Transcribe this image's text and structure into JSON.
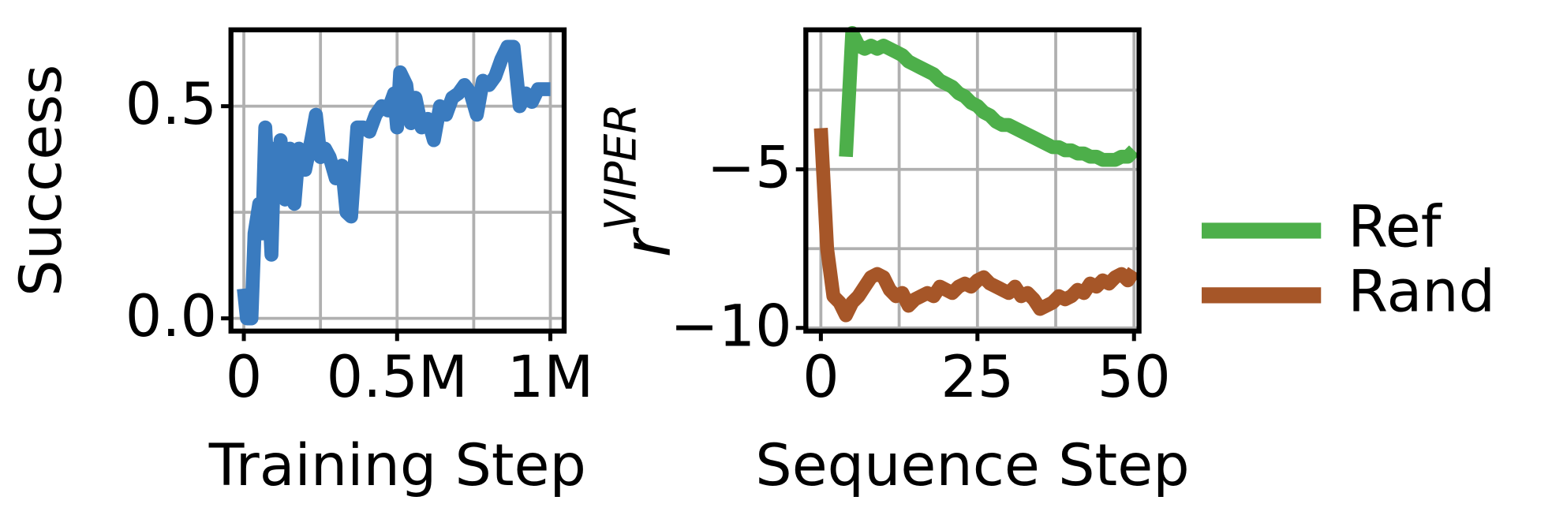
{
  "chart_data": [
    {
      "type": "line",
      "xlabel": "Training Step",
      "ylabel": "Success",
      "color": "#3a7bbf",
      "x": [
        0,
        10000,
        25000,
        35000,
        50000,
        60000,
        70000,
        80000,
        90000,
        100000,
        110000,
        120000,
        135000,
        150000,
        165000,
        180000,
        200000,
        220000,
        235000,
        250000,
        265000,
        280000,
        300000,
        320000,
        335000,
        350000,
        370000,
        390000,
        410000,
        430000,
        450000,
        470000,
        490000,
        500000,
        510000,
        530000,
        545000,
        560000,
        580000,
        600000,
        620000,
        640000,
        660000,
        680000,
        700000,
        720000,
        740000,
        760000,
        780000,
        800000,
        820000,
        840000,
        860000,
        880000,
        900000,
        920000,
        940000,
        960000,
        980000,
        1000000
      ],
      "values": [
        0.07,
        0.0,
        0.0,
        0.2,
        0.27,
        0.2,
        0.45,
        0.3,
        0.15,
        0.4,
        0.3,
        0.42,
        0.28,
        0.4,
        0.27,
        0.4,
        0.35,
        0.42,
        0.48,
        0.38,
        0.4,
        0.38,
        0.33,
        0.36,
        0.25,
        0.24,
        0.45,
        0.45,
        0.44,
        0.48,
        0.5,
        0.49,
        0.53,
        0.45,
        0.58,
        0.55,
        0.46,
        0.52,
        0.45,
        0.47,
        0.42,
        0.5,
        0.48,
        0.52,
        0.53,
        0.55,
        0.53,
        0.48,
        0.56,
        0.55,
        0.57,
        0.61,
        0.64,
        0.64,
        0.5,
        0.53,
        0.51,
        0.54,
        0.54,
        0.54
      ],
      "xlim": [
        -42000,
        1045000
      ],
      "ylim": [
        -0.03,
        0.68
      ],
      "xticks": [
        {
          "value": 0,
          "label": "0"
        },
        {
          "value": 500000,
          "label": "0.5M"
        },
        {
          "value": 1000000,
          "label": "1M"
        }
      ],
      "yticks": [
        {
          "value": 0,
          "label": "0.0"
        },
        {
          "value": 0.5,
          "label": "0.5"
        }
      ],
      "xminor": [
        250000,
        750000
      ],
      "yminor": [
        0.25
      ],
      "grid": true
    },
    {
      "type": "line",
      "xlabel": "Sequence Step",
      "ylabel": "r",
      "ylabel_sup": "VIPER",
      "x": [
        0,
        1,
        2,
        3,
        4,
        5,
        6,
        7,
        8,
        9,
        10,
        11,
        12,
        13,
        14,
        15,
        16,
        17,
        18,
        19,
        20,
        21,
        22,
        23,
        24,
        25,
        26,
        27,
        28,
        29,
        30,
        31,
        32,
        33,
        34,
        35,
        36,
        37,
        38,
        39,
        40,
        41,
        42,
        43,
        44,
        45,
        46,
        47,
        48,
        49,
        50
      ],
      "series": [
        {
          "name": "Ref",
          "color": "#4daf4a",
          "values": [
            null,
            null,
            null,
            null,
            -4.6,
            -0.7,
            -1.1,
            -1.2,
            -1.1,
            -1.2,
            -1.1,
            -1.2,
            -1.3,
            -1.4,
            -1.6,
            -1.7,
            -1.8,
            -1.9,
            -2.0,
            -2.2,
            -2.3,
            -2.4,
            -2.6,
            -2.7,
            -2.9,
            -3.0,
            -3.2,
            -3.3,
            -3.5,
            -3.6,
            -3.6,
            -3.7,
            -3.8,
            -3.9,
            -4.0,
            -4.1,
            -4.2,
            -4.3,
            -4.3,
            -4.4,
            -4.4,
            -4.5,
            -4.5,
            -4.6,
            -4.6,
            -4.7,
            -4.7,
            -4.7,
            -4.6,
            -4.6,
            -4.4
          ]
        },
        {
          "name": "Rand",
          "color": "#a65628",
          "values": [
            -3.7,
            -7.5,
            -9.0,
            -9.2,
            -9.6,
            -9.2,
            -9.0,
            -8.7,
            -8.4,
            -8.3,
            -8.4,
            -8.8,
            -9.0,
            -8.9,
            -9.3,
            -9.1,
            -9.0,
            -8.9,
            -9.0,
            -8.7,
            -8.8,
            -8.9,
            -8.7,
            -8.6,
            -8.7,
            -8.5,
            -8.4,
            -8.6,
            -8.7,
            -8.8,
            -8.9,
            -8.7,
            -9.0,
            -8.9,
            -9.1,
            -9.4,
            -9.3,
            -9.2,
            -9.0,
            -9.1,
            -9.0,
            -8.8,
            -8.9,
            -8.6,
            -8.7,
            -8.5,
            -8.6,
            -8.4,
            -8.3,
            -8.5,
            -8.2
          ]
        }
      ],
      "xlim": [
        -2.4,
        50.8
      ],
      "ylim": [
        -10.1,
        -0.6
      ],
      "xticks": [
        0,
        25,
        50
      ],
      "yticks": [
        {
          "value": -5,
          "label": "−5"
        },
        {
          "value": -10,
          "label": "−10"
        }
      ],
      "xminor": [
        12.5,
        37.5
      ],
      "yminor": [
        -7.5,
        -2.5
      ],
      "grid": true,
      "legend": "right"
    }
  ]
}
